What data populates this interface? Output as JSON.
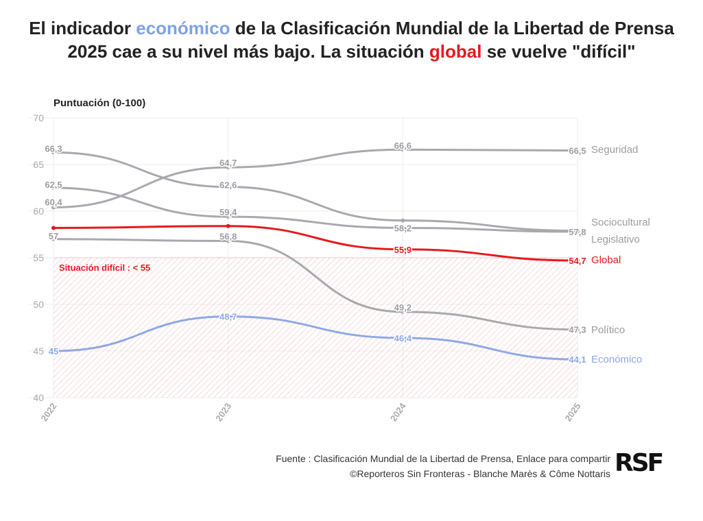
{
  "title": {
    "p1": "El indicador ",
    "highlight1": "económico",
    "p2": " de la Clasificación Mundial de la Libertad de Prensa 2025 cae a su nivel más bajo. La situación ",
    "highlight2": "global",
    "p3": " se vuelve \"difícil\""
  },
  "source": {
    "line1": "Fuente : Clasificación Mundial de la Libertad de Prensa, Enlace para compartir",
    "line2": "©Reporteros Sin Fronteras - Blanche Marès & Côme Nottaris"
  },
  "logo_text": "RSF",
  "colors": {
    "grey": "#a8a8ae",
    "red": "#e5191d",
    "blue": "#8ea8e6",
    "zone": "#f7c6cc"
  },
  "chart_data": {
    "type": "line",
    "ylabel": "Puntuación (0-100)",
    "x": [
      "2022",
      "2023",
      "2024",
      "2025"
    ],
    "ylim": [
      40,
      70
    ],
    "yticks": [
      "40",
      "45",
      "50",
      "55",
      "60",
      "65",
      "70"
    ],
    "zone": {
      "label": "Situación difícil : < 55",
      "from": 40,
      "to": 55
    },
    "series": [
      {
        "name": "Seguridad",
        "values": [
          60.4,
          64.7,
          66.6,
          66.5
        ],
        "labels": [
          "60,4",
          "64,7",
          "66,6",
          "66,5"
        ],
        "color": "#a8a8ae"
      },
      {
        "name": "Sociocultural",
        "values": [
          66.3,
          62.6,
          59.0,
          57.9
        ],
        "labels": [
          "66,3",
          "62,6",
          "",
          ""
        ],
        "color": "#a8a8ae"
      },
      {
        "name": "Legislativo",
        "values": [
          62.5,
          59.4,
          58.2,
          57.8
        ],
        "labels": [
          "62,5",
          "59,4",
          "58,2",
          "57,8"
        ],
        "color": "#a8a8ae"
      },
      {
        "name": "Político",
        "values": [
          57.0,
          56.8,
          49.2,
          47.3
        ],
        "labels": [
          "57",
          "56,8",
          "49,2",
          "47,3"
        ],
        "color": "#a8a8ae"
      },
      {
        "name": "Global",
        "values": [
          58.2,
          58.4,
          55.9,
          54.7
        ],
        "labels": [
          "",
          "",
          "55,9",
          "54,7"
        ],
        "color": "#e5191d"
      },
      {
        "name": "Económico",
        "values": [
          45.0,
          48.7,
          46.4,
          44.1
        ],
        "labels": [
          "45",
          "48,7",
          "46,4",
          "44,1"
        ],
        "color": "#8ea8e6"
      }
    ]
  }
}
